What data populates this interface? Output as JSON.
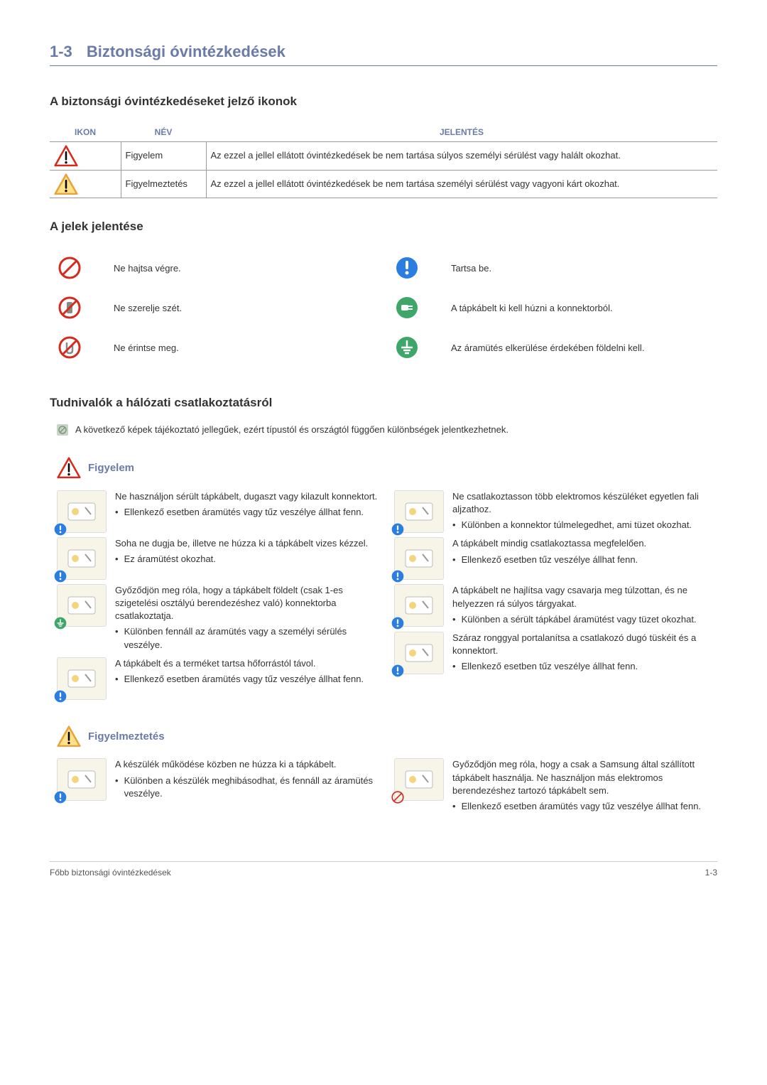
{
  "header": {
    "num": "1-3",
    "title": "Biztonsági óvintézkedések"
  },
  "subsection1": "A biztonsági óvintézkedéseket jelző ikonok",
  "iconTable": {
    "headers": {
      "icon": "IKON",
      "name": "NÉV",
      "meaning": "JELENTÉS"
    },
    "rows": [
      {
        "name": "Figyelem",
        "meaning": "Az ezzel a jellel ellátott óvintézkedések be nem tartása súlyos személyi sérülést vagy halált okozhat.",
        "iconColor": "#d52b1e"
      },
      {
        "name": "Figyelmeztetés",
        "meaning": "Az ezzel a jellel ellátott óvintézkedések be nem tartása személyi sérülést vagy vagyoni kárt okozhat.",
        "iconColor": "#e8a33d"
      }
    ]
  },
  "subsection2": "A jelek jelentése",
  "symbols": [
    {
      "type": "prohibit",
      "text": "Ne hajtsa végre."
    },
    {
      "type": "must",
      "text": "Tartsa be."
    },
    {
      "type": "no-disassemble",
      "text": "Ne szerelje szét."
    },
    {
      "type": "unplug",
      "text": "A tápkábelt ki kell húzni a konnektorból."
    },
    {
      "type": "no-touch",
      "text": "Ne érintse meg."
    },
    {
      "type": "ground",
      "text": "Az áramütés elkerülése érdekében földelni kell."
    }
  ],
  "subsection3": "Tudnivalók a hálózati csatlakoztatásról",
  "note": "A következő képek tájékoztató jellegűek, ezért típustól és országtól függően különbségek jelentkezhetnek.",
  "warning": {
    "title": "Figyelem",
    "iconColor": "#d52b1e",
    "left": [
      {
        "badge": "must",
        "intro": "Ne használjon sérült tápkábelt, dugaszt vagy kilazult konnektort.",
        "bullets": [
          "Ellenkező esetben áramütés vagy tűz veszélye állhat fenn."
        ]
      },
      {
        "badge": "must",
        "intro": "Soha ne dugja be, illetve ne húzza ki a tápkábelt vizes kézzel.",
        "bullets": [
          "Ez áramütést okozhat."
        ]
      },
      {
        "badge": "ground",
        "intro": "Győződjön meg róla, hogy a tápkábelt földelt (csak 1-es szigetelési osztályú berendezéshez való) konnektorba csatlakoztatja.",
        "bullets": [
          "Különben fennáll az áramütés vagy a személyi sérülés veszélye."
        ]
      },
      {
        "badge": "must",
        "intro": "A tápkábelt és a terméket tartsa hőforrástól távol.",
        "bullets": [
          "Ellenkező esetben áramütés vagy tűz veszélye állhat fenn."
        ]
      }
    ],
    "right": [
      {
        "badge": "must",
        "intro": "Ne csatlakoztasson több elektromos készüléket egyetlen fali aljzathoz.",
        "bullets": [
          "Különben a konnektor túlmelegedhet, ami tüzet okozhat."
        ]
      },
      {
        "badge": "must",
        "intro": "A tápkábelt mindig csatlakoztassa megfelelően.",
        "bullets": [
          "Ellenkező esetben tűz veszélye állhat fenn."
        ]
      },
      {
        "badge": "must",
        "intro": "A tápkábelt ne hajlítsa vagy csavarja meg túlzottan, és ne helyezzen rá súlyos tárgyakat.",
        "bullets": [
          "Különben a sérült tápkábel áramütést vagy tüzet okozhat."
        ]
      },
      {
        "badge": "must",
        "intro": "Száraz ronggyal portalanítsa a csatlakozó dugó tüskéit és a konnektort.",
        "bullets": [
          "Ellenkező esetben tűz veszélye állhat fenn."
        ]
      }
    ]
  },
  "caution": {
    "title": "Figyelmeztetés",
    "iconColor": "#e8a33d",
    "left": [
      {
        "badge": "must",
        "intro": "A készülék működése közben ne húzza ki a tápkábelt.",
        "bullets": [
          "Különben a készülék meghibásodhat, és fennáll az áramütés veszélye."
        ]
      }
    ],
    "right": [
      {
        "badge": "prohibit",
        "intro": "Győződjön meg róla, hogy a csak a Samsung által szállított tápkábelt használja. Ne használjon más elektromos berendezéshez tartozó tápkábelt sem.",
        "bullets": [
          "Ellenkező esetben áramütés vagy tűz veszélye állhat fenn."
        ]
      }
    ]
  },
  "footer": {
    "left": "Főbb biztonsági óvintézkedések",
    "right": "1-3"
  },
  "colors": {
    "heading": "#6a7ba8",
    "must": "#2a7de1",
    "ground": "#3fa66a",
    "unplug": "#3fa66a",
    "prohibit": "#d52b1e"
  }
}
